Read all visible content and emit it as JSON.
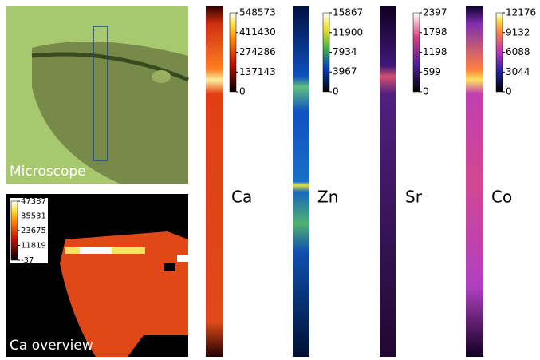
{
  "panels": [
    {
      "label": "Microscope"
    },
    {
      "label": "Ca overview",
      "colorbar_ticks": [
        -37,
        11819,
        23675,
        35531,
        47387
      ]
    },
    {
      "label": "Ca",
      "colorbar_ticks": [
        0,
        137143,
        274286,
        411430,
        548573
      ]
    },
    {
      "label": "Zn",
      "colorbar_ticks": [
        0,
        3967,
        7934,
        11900,
        15867
      ]
    },
    {
      "label": "Sr",
      "colorbar_ticks": [
        0,
        599,
        1198,
        1798,
        2397
      ]
    },
    {
      "label": "Co",
      "colorbar_ticks": [
        0,
        3044,
        6088,
        9132,
        12176
      ]
    }
  ]
}
